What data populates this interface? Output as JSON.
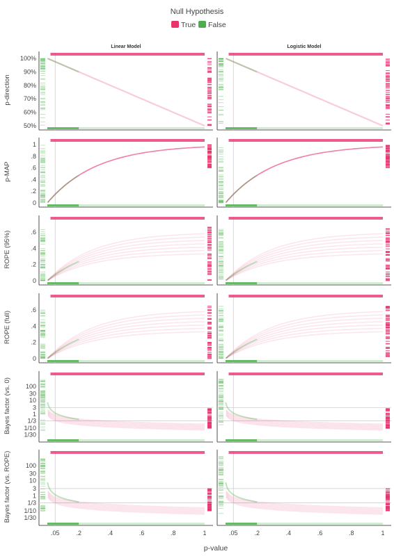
{
  "legend": {
    "title": "Null Hypothesis",
    "entries": [
      {
        "label": "True",
        "color": "#e8336d"
      },
      {
        "label": "False",
        "color": "#4cae4c"
      }
    ]
  },
  "columns": [
    "Linear Model",
    "Logistic Model"
  ],
  "xlabel": "p-value",
  "x_ticks": [
    {
      "v": 0.05,
      "label": ".05"
    },
    {
      "v": 0.2,
      "label": ".2"
    },
    {
      "v": 0.4,
      "label": ".4"
    },
    {
      "v": 0.6,
      "label": ".6"
    },
    {
      "v": 0.8,
      "label": ".8"
    },
    {
      "v": 1.0,
      "label": "1"
    }
  ],
  "chart_data": {
    "type": "scatter",
    "xlim": [
      0,
      1
    ],
    "reference_line_x": 0.05,
    "panels": [
      {
        "ylabel": "p-direction",
        "scale": "linear",
        "ylim": [
          0.5,
          1.0
        ],
        "y_ticks": [
          {
            "v": 1.0,
            "label": "100%"
          },
          {
            "v": 0.9,
            "label": "90%"
          },
          {
            "v": 0.8,
            "label": "80%"
          },
          {
            "v": 0.7,
            "label": "70%"
          },
          {
            "v": 0.6,
            "label": "60%"
          },
          {
            "v": 0.5,
            "label": "50%"
          }
        ],
        "hlines": []
      },
      {
        "ylabel": "p-MAP",
        "scale": "linear",
        "ylim": [
          0,
          1
        ],
        "y_ticks": [
          {
            "v": 1.0,
            "label": "1"
          },
          {
            "v": 0.8,
            "label": ".8"
          },
          {
            "v": 0.6,
            "label": ".6"
          },
          {
            "v": 0.4,
            "label": ".4"
          },
          {
            "v": 0.2,
            "label": ".2"
          },
          {
            "v": 0.0,
            "label": "0"
          }
        ],
        "hlines": []
      },
      {
        "ylabel": "ROPE (95%)",
        "scale": "linear",
        "ylim": [
          0,
          0.72
        ],
        "y_ticks": [
          {
            "v": 0.6,
            "label": ".6"
          },
          {
            "v": 0.4,
            "label": ".4"
          },
          {
            "v": 0.2,
            "label": ".2"
          },
          {
            "v": 0.0,
            "label": "0"
          }
        ],
        "hlines": []
      },
      {
        "ylabel": "ROPE (full)",
        "scale": "linear",
        "ylim": [
          0,
          0.72
        ],
        "y_ticks": [
          {
            "v": 0.6,
            "label": ".6"
          },
          {
            "v": 0.4,
            "label": ".4"
          },
          {
            "v": 0.2,
            "label": ".2"
          },
          {
            "v": 0.0,
            "label": "0"
          }
        ],
        "hlines": []
      },
      {
        "ylabel": "Bayes factor (vs. 0)",
        "scale": "log",
        "ylim": [
          0.02,
          400
        ],
        "y_ticks": [
          {
            "v": 100,
            "label": "100"
          },
          {
            "v": 30,
            "label": "30"
          },
          {
            "v": 10,
            "label": "10"
          },
          {
            "v": 3,
            "label": "3"
          },
          {
            "v": 1,
            "label": "1"
          },
          {
            "v": 0.3333,
            "label": "1/3"
          },
          {
            "v": 0.1,
            "label": "1/10"
          },
          {
            "v": 0.0333,
            "label": "1/30"
          }
        ],
        "hlines": [
          3,
          0.3333
        ]
      },
      {
        "ylabel": "Bayes factor (vs. ROPE)",
        "scale": "log",
        "ylim": [
          0.02,
          400
        ],
        "y_ticks": [
          {
            "v": 100,
            "label": "100"
          },
          {
            "v": 30,
            "label": "30"
          },
          {
            "v": 10,
            "label": "10"
          },
          {
            "v": 3,
            "label": "3"
          },
          {
            "v": 1,
            "label": "1"
          },
          {
            "v": 0.3333,
            "label": "1/3"
          },
          {
            "v": 0.1,
            "label": "1/10"
          },
          {
            "v": 0.0333,
            "label": "1/30"
          }
        ],
        "hlines": [
          3,
          0.3333
        ]
      }
    ]
  }
}
